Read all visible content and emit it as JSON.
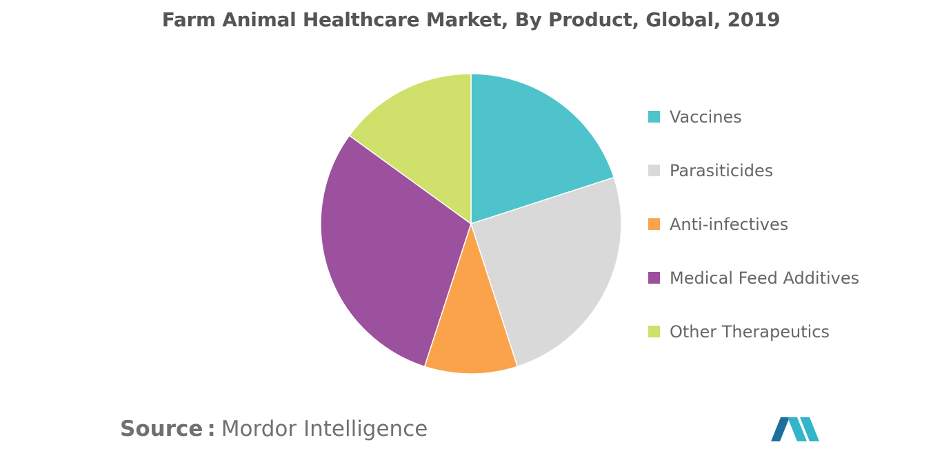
{
  "chart_data": {
    "type": "pie",
    "title": "Farm Animal Healthcare Market, By Product, Global, 2019",
    "categories": [
      "Vaccines",
      "Parasiticides",
      "Anti-infectives",
      "Medical Feed Additives",
      "Other Therapeutics"
    ],
    "values": [
      20,
      25,
      10,
      30,
      15
    ],
    "colors": [
      "#4fc3cb",
      "#d9d9d9",
      "#fba34b",
      "#9b519e",
      "#cfe06b"
    ],
    "start_angle_deg": 0,
    "direction": "clockwise",
    "legend_position": "right"
  },
  "source": {
    "label": "Source",
    "separator": ":",
    "text": "Mordor Intelligence"
  },
  "logo": {
    "icon": "mordor-intelligence-logo",
    "colors": [
      "#1f6f9e",
      "#33b5c9"
    ]
  }
}
